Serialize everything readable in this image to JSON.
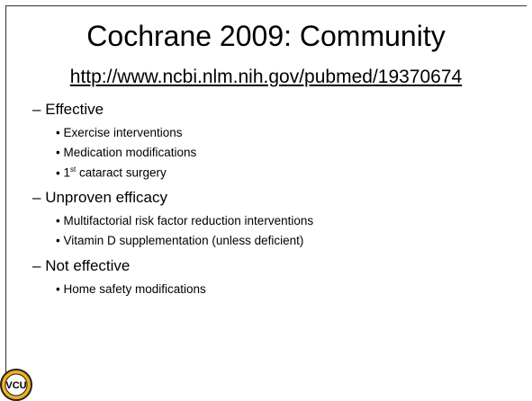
{
  "slide": {
    "title": "Cochrane 2009:  Community",
    "link": "http://www.ncbi.nlm.nih.gov/pubmed/19370674",
    "sections": [
      {
        "heading": "Effective",
        "items": [
          {
            "text": "Exercise interventions"
          },
          {
            "text": "Medication modifications"
          },
          {
            "prefix": "1",
            "sup": "st",
            "text": " cataract surgery"
          }
        ]
      },
      {
        "heading": "Unproven efficacy",
        "items": [
          {
            "text": "Multifactorial risk factor reduction interventions"
          },
          {
            "text": "Vitamin D supplementation (unless deficient)"
          }
        ]
      },
      {
        "heading": "Not effective",
        "items": [
          {
            "text": "Home safety modifications"
          }
        ]
      }
    ],
    "logo": "VCU"
  }
}
